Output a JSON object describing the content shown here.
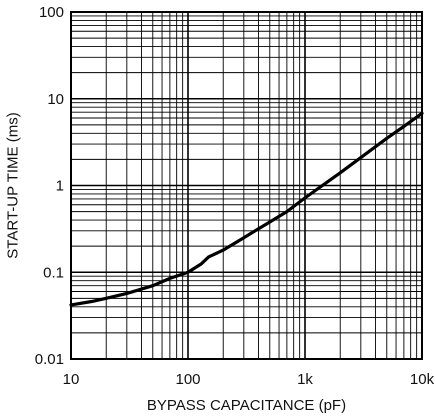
{
  "chart_data": {
    "type": "line",
    "title": "",
    "xlabel": "BYPASS CAPACITANCE (pF)",
    "ylabel": "START-UP TIME (ms)",
    "xscale": "log",
    "yscale": "log",
    "xlim": [
      10,
      10000
    ],
    "ylim": [
      0.01,
      100
    ],
    "grid": true,
    "x_tick_labels": [
      "10",
      "100",
      "1k",
      "10k"
    ],
    "y_tick_labels": [
      "0.01",
      "0.1",
      "1",
      "10",
      "100"
    ],
    "series": [
      {
        "x": [
          10,
          15,
          20,
          30,
          50,
          70,
          100,
          130,
          150,
          200,
          300,
          500,
          700,
          1000,
          2000,
          3000,
          5000,
          7000,
          10000
        ],
        "y": [
          0.042,
          0.046,
          0.05,
          0.057,
          0.07,
          0.085,
          0.1,
          0.125,
          0.15,
          0.18,
          0.25,
          0.38,
          0.5,
          0.72,
          1.4,
          2.1,
          3.5,
          4.8,
          6.8
        ]
      }
    ]
  }
}
